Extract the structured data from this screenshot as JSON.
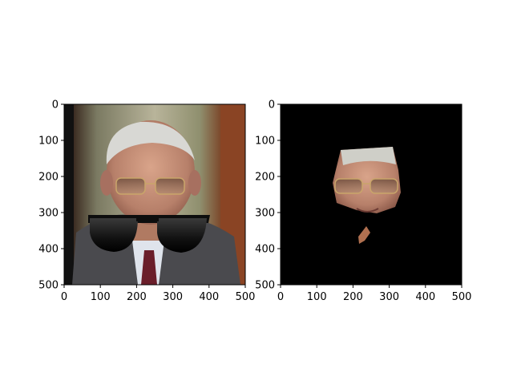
{
  "figure": {
    "background": "#ffffff",
    "panels": [
      {
        "id": "left",
        "image": "photo of a man with gray hair wearing a suit and tie, with cartoon black sunglasses overlaid across the lower face",
        "xticks": [
          "0",
          "100",
          "200",
          "300",
          "400",
          "500"
        ],
        "yticks": [
          "0",
          "100",
          "200",
          "300",
          "400",
          "500"
        ],
        "xlim": [
          0,
          500
        ],
        "ylim": [
          500,
          0
        ]
      },
      {
        "id": "right",
        "image": "segmented face region with glasses on a black background; small skin patch below",
        "xticks": [
          "0",
          "100",
          "200",
          "300",
          "400",
          "500"
        ],
        "yticks": [
          "0",
          "100",
          "200",
          "300",
          "400",
          "500"
        ],
        "xlim": [
          0,
          500
        ],
        "ylim": [
          500,
          0
        ]
      }
    ]
  }
}
